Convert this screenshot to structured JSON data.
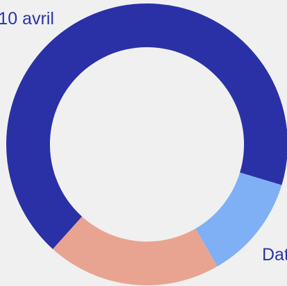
{
  "chart_data": {
    "type": "donut",
    "categories": [
      "10 avril",
      "Dat",
      null
    ],
    "values": [
      68,
      12,
      20
    ],
    "colors": [
      "#2a31a6",
      "#7fb0f5",
      "#e9a491"
    ]
  }
}
